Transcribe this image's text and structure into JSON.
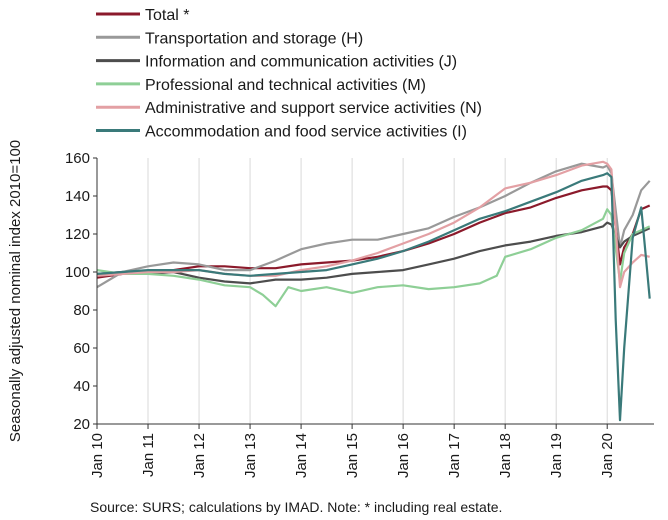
{
  "chart_data": {
    "type": "line",
    "title": "",
    "xlabel": "",
    "ylabel": "Seasonally adjusted nominal index 2010=100",
    "ylim": [
      20,
      160
    ],
    "yticks": [
      20,
      40,
      60,
      80,
      100,
      120,
      140,
      160
    ],
    "xlim": [
      2010.0,
      2020.917
    ],
    "xtick_labels": [
      "Jan 10",
      "Jan 11",
      "Jan 12",
      "Jan 13",
      "Jan 14",
      "Jan 15",
      "Jan 16",
      "Jan 17",
      "Jan 18",
      "Jan 19",
      "Jan 20"
    ],
    "xtick_values": [
      2010,
      2011,
      2012,
      2013,
      2014,
      2015,
      2016,
      2017,
      2018,
      2019,
      2020
    ],
    "grid": "vertical gridlines only",
    "legend_position": "top-left, above plot",
    "source": "Source:  SURS; calculations by IMAD. Note: * including real estate.",
    "series": [
      {
        "name": "Total *",
        "color": "#8b1a2b",
        "points": [
          [
            2010.0,
            97
          ],
          [
            2010.5,
            99
          ],
          [
            2011.0,
            100
          ],
          [
            2011.5,
            101
          ],
          [
            2012.0,
            103
          ],
          [
            2012.5,
            103
          ],
          [
            2013.0,
            102
          ],
          [
            2013.5,
            102
          ],
          [
            2014.0,
            104
          ],
          [
            2014.5,
            105
          ],
          [
            2015.0,
            106
          ],
          [
            2015.5,
            108
          ],
          [
            2016.0,
            111
          ],
          [
            2016.5,
            115
          ],
          [
            2017.0,
            120
          ],
          [
            2017.5,
            126
          ],
          [
            2018.0,
            131
          ],
          [
            2018.5,
            134
          ],
          [
            2019.0,
            139
          ],
          [
            2019.5,
            143
          ],
          [
            2019.917,
            145
          ],
          [
            2020.0,
            145
          ],
          [
            2020.083,
            143
          ],
          [
            2020.25,
            104
          ],
          [
            2020.333,
            113
          ],
          [
            2020.5,
            120
          ],
          [
            2020.667,
            133
          ],
          [
            2020.833,
            135
          ]
        ]
      },
      {
        "name": "Transportation and storage (H)",
        "color": "#999999",
        "points": [
          [
            2010.0,
            92
          ],
          [
            2010.5,
            100
          ],
          [
            2011.0,
            103
          ],
          [
            2011.5,
            105
          ],
          [
            2012.0,
            104
          ],
          [
            2012.5,
            101
          ],
          [
            2013.0,
            101
          ],
          [
            2013.5,
            106
          ],
          [
            2014.0,
            112
          ],
          [
            2014.5,
            115
          ],
          [
            2015.0,
            117
          ],
          [
            2015.5,
            117
          ],
          [
            2016.0,
            120
          ],
          [
            2016.5,
            123
          ],
          [
            2017.0,
            129
          ],
          [
            2017.5,
            134
          ],
          [
            2018.0,
            140
          ],
          [
            2018.5,
            147
          ],
          [
            2019.0,
            153
          ],
          [
            2019.5,
            157
          ],
          [
            2019.917,
            155
          ],
          [
            2020.0,
            156
          ],
          [
            2020.083,
            152
          ],
          [
            2020.25,
            113
          ],
          [
            2020.333,
            122
          ],
          [
            2020.5,
            130
          ],
          [
            2020.667,
            143
          ],
          [
            2020.833,
            148
          ]
        ]
      },
      {
        "name": "Information and communication activities (J)",
        "color": "#4d4d4d",
        "points": [
          [
            2010.0,
            99
          ],
          [
            2010.5,
            100
          ],
          [
            2011.0,
            99
          ],
          [
            2011.5,
            100
          ],
          [
            2012.0,
            97
          ],
          [
            2012.5,
            95
          ],
          [
            2013.0,
            94
          ],
          [
            2013.5,
            96
          ],
          [
            2014.0,
            96
          ],
          [
            2014.5,
            97
          ],
          [
            2015.0,
            99
          ],
          [
            2015.5,
            100
          ],
          [
            2016.0,
            101
          ],
          [
            2016.5,
            104
          ],
          [
            2017.0,
            107
          ],
          [
            2017.5,
            111
          ],
          [
            2018.0,
            114
          ],
          [
            2018.5,
            116
          ],
          [
            2019.0,
            119
          ],
          [
            2019.5,
            121
          ],
          [
            2019.917,
            124
          ],
          [
            2020.0,
            126
          ],
          [
            2020.083,
            125
          ],
          [
            2020.25,
            113
          ],
          [
            2020.333,
            116
          ],
          [
            2020.5,
            119
          ],
          [
            2020.667,
            121
          ],
          [
            2020.833,
            123
          ]
        ]
      },
      {
        "name": "Professional and technical activities (M)",
        "color": "#8ecf96",
        "points": [
          [
            2010.0,
            101
          ],
          [
            2010.5,
            99
          ],
          [
            2011.0,
            99
          ],
          [
            2011.5,
            98
          ],
          [
            2012.0,
            96
          ],
          [
            2012.5,
            93
          ],
          [
            2013.0,
            92
          ],
          [
            2013.25,
            88
          ],
          [
            2013.5,
            82
          ],
          [
            2013.75,
            92
          ],
          [
            2014.0,
            90
          ],
          [
            2014.5,
            92
          ],
          [
            2015.0,
            89
          ],
          [
            2015.5,
            92
          ],
          [
            2016.0,
            93
          ],
          [
            2016.5,
            91
          ],
          [
            2017.0,
            92
          ],
          [
            2017.5,
            94
          ],
          [
            2017.833,
            98
          ],
          [
            2018.0,
            108
          ],
          [
            2018.5,
            112
          ],
          [
            2019.0,
            118
          ],
          [
            2019.5,
            122
          ],
          [
            2019.917,
            128
          ],
          [
            2020.0,
            133
          ],
          [
            2020.083,
            130
          ],
          [
            2020.25,
            95
          ],
          [
            2020.333,
            110
          ],
          [
            2020.5,
            120
          ],
          [
            2020.667,
            122
          ],
          [
            2020.833,
            124
          ]
        ]
      },
      {
        "name": "Administrative and support service activities (N)",
        "color": "#e3a0a4",
        "points": [
          [
            2010.0,
            98
          ],
          [
            2010.5,
            99
          ],
          [
            2011.0,
            100
          ],
          [
            2011.5,
            100
          ],
          [
            2012.0,
            101
          ],
          [
            2012.5,
            99
          ],
          [
            2013.0,
            98
          ],
          [
            2013.5,
            98
          ],
          [
            2014.0,
            101
          ],
          [
            2014.5,
            103
          ],
          [
            2015.0,
            106
          ],
          [
            2015.5,
            110
          ],
          [
            2016.0,
            115
          ],
          [
            2016.5,
            120
          ],
          [
            2017.0,
            126
          ],
          [
            2017.5,
            134
          ],
          [
            2018.0,
            144
          ],
          [
            2018.5,
            147
          ],
          [
            2019.0,
            151
          ],
          [
            2019.5,
            156
          ],
          [
            2019.917,
            158
          ],
          [
            2020.0,
            157
          ],
          [
            2020.083,
            154
          ],
          [
            2020.25,
            92
          ],
          [
            2020.333,
            100
          ],
          [
            2020.5,
            105
          ],
          [
            2020.667,
            109
          ],
          [
            2020.833,
            108
          ]
        ]
      },
      {
        "name": "Accommodation and food service activities (I)",
        "color": "#3a7a7a",
        "points": [
          [
            2010.0,
            99
          ],
          [
            2010.5,
            100
          ],
          [
            2011.0,
            101
          ],
          [
            2011.5,
            101
          ],
          [
            2012.0,
            101
          ],
          [
            2012.5,
            99
          ],
          [
            2013.0,
            98
          ],
          [
            2013.5,
            99
          ],
          [
            2014.0,
            100
          ],
          [
            2014.5,
            101
          ],
          [
            2015.0,
            104
          ],
          [
            2015.5,
            107
          ],
          [
            2016.0,
            111
          ],
          [
            2016.5,
            116
          ],
          [
            2017.0,
            122
          ],
          [
            2017.5,
            128
          ],
          [
            2018.0,
            132
          ],
          [
            2018.5,
            137
          ],
          [
            2019.0,
            142
          ],
          [
            2019.5,
            148
          ],
          [
            2019.917,
            151
          ],
          [
            2020.0,
            152
          ],
          [
            2020.083,
            150
          ],
          [
            2020.167,
            75
          ],
          [
            2020.25,
            22
          ],
          [
            2020.333,
            60
          ],
          [
            2020.5,
            118
          ],
          [
            2020.667,
            134
          ],
          [
            2020.75,
            110
          ],
          [
            2020.833,
            86
          ]
        ]
      }
    ]
  }
}
